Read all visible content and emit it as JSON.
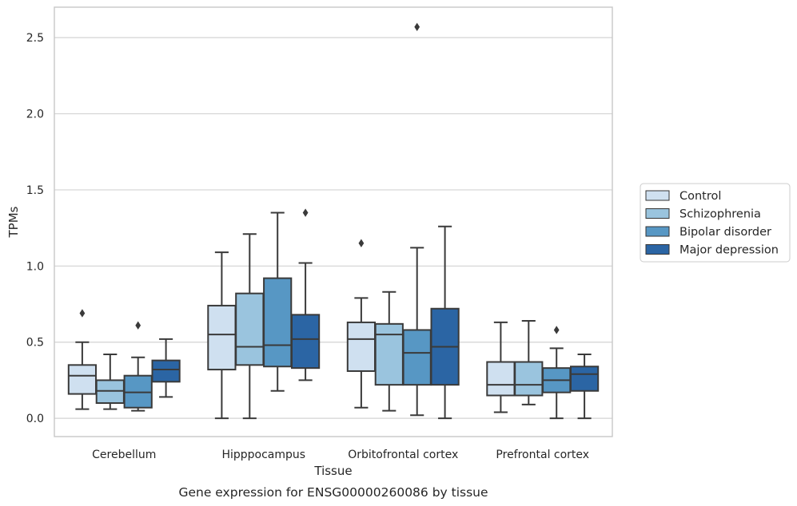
{
  "chart_data": {
    "type": "boxplot",
    "title": "",
    "caption": "Gene expression for ENSG00000260086 by tissue",
    "xlabel": "Tissue",
    "ylabel": "TPMs",
    "ylim": [
      -0.12,
      2.7
    ],
    "yticks": [
      0.0,
      0.5,
      1.0,
      1.5,
      2.0,
      2.5
    ],
    "ytick_labels": [
      "0.0",
      "0.5",
      "1.0",
      "1.5",
      "2.0",
      "2.5"
    ],
    "grid": "horizontal",
    "legend_position": "right",
    "categories": [
      "Cerebellum",
      "Hipppocampus",
      "Orbitofrontal cortex",
      "Prefrontal cortex"
    ],
    "series": [
      {
        "name": "Control",
        "color": "#cfe0f0",
        "boxes": [
          {
            "whislo": 0.06,
            "q1": 0.16,
            "med": 0.28,
            "q3": 0.35,
            "whishi": 0.5,
            "fliers": [
              0.69
            ]
          },
          {
            "whislo": 0.0,
            "q1": 0.32,
            "med": 0.55,
            "q3": 0.74,
            "whishi": 1.09,
            "fliers": []
          },
          {
            "whislo": 0.07,
            "q1": 0.31,
            "med": 0.52,
            "q3": 0.63,
            "whishi": 0.79,
            "fliers": [
              1.15
            ]
          },
          {
            "whislo": 0.04,
            "q1": 0.15,
            "med": 0.22,
            "q3": 0.37,
            "whishi": 0.63,
            "fliers": []
          }
        ]
      },
      {
        "name": "Schizophrenia",
        "color": "#9ac4de",
        "boxes": [
          {
            "whislo": 0.06,
            "q1": 0.1,
            "med": 0.18,
            "q3": 0.25,
            "whishi": 0.42,
            "fliers": []
          },
          {
            "whislo": 0.0,
            "q1": 0.35,
            "med": 0.47,
            "q3": 0.82,
            "whishi": 1.21,
            "fliers": []
          },
          {
            "whislo": 0.05,
            "q1": 0.22,
            "med": 0.55,
            "q3": 0.62,
            "whishi": 0.83,
            "fliers": []
          },
          {
            "whislo": 0.09,
            "q1": 0.15,
            "med": 0.22,
            "q3": 0.37,
            "whishi": 0.64,
            "fliers": []
          }
        ]
      },
      {
        "name": "Bipolar disorder",
        "color": "#5797c4",
        "boxes": [
          {
            "whislo": 0.05,
            "q1": 0.07,
            "med": 0.17,
            "q3": 0.28,
            "whishi": 0.4,
            "fliers": [
              0.61
            ]
          },
          {
            "whislo": 0.18,
            "q1": 0.34,
            "med": 0.48,
            "q3": 0.92,
            "whishi": 1.35,
            "fliers": []
          },
          {
            "whislo": 0.02,
            "q1": 0.22,
            "med": 0.43,
            "q3": 0.58,
            "whishi": 1.12,
            "fliers": [
              2.57
            ]
          },
          {
            "whislo": 0.0,
            "q1": 0.17,
            "med": 0.25,
            "q3": 0.33,
            "whishi": 0.46,
            "fliers": [
              0.58
            ]
          }
        ]
      },
      {
        "name": "Major depression",
        "color": "#2b65a4",
        "boxes": [
          {
            "whislo": 0.14,
            "q1": 0.24,
            "med": 0.32,
            "q3": 0.38,
            "whishi": 0.52,
            "fliers": []
          },
          {
            "whislo": 0.25,
            "q1": 0.33,
            "med": 0.52,
            "q3": 0.68,
            "whishi": 1.02,
            "fliers": [
              1.35
            ]
          },
          {
            "whislo": 0.0,
            "q1": 0.22,
            "med": 0.47,
            "q3": 0.72,
            "whishi": 1.26,
            "fliers": []
          },
          {
            "whislo": 0.0,
            "q1": 0.18,
            "med": 0.29,
            "q3": 0.34,
            "whishi": 0.42,
            "fliers": []
          }
        ]
      }
    ],
    "colors": {
      "grid": "#d3d3d3",
      "frame": "#c8c8c8",
      "box_edge": "#3a3a3a",
      "text": "#262626"
    }
  }
}
